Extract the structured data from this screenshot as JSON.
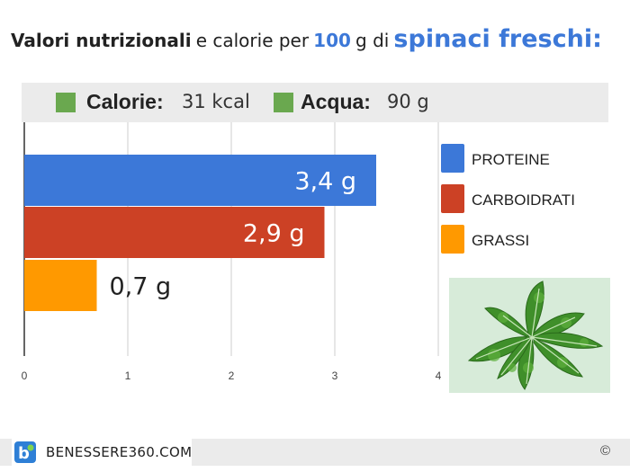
{
  "heading": {
    "part1": "Valori nutrizionali",
    "part2": "e calorie per",
    "part3": "100",
    "part4": "g di",
    "part5": "spinaci freschi:"
  },
  "infobar": {
    "calorie_label": "Calorie:",
    "calorie_value": "31 kcal",
    "acqua_label": "Acqua:",
    "acqua_value": "90 g",
    "square_color": "#6aa84f"
  },
  "legend": [
    {
      "label": "PROTEINE",
      "color": "#3c78d8"
    },
    {
      "label": "CARBOIDRATI",
      "color": "#cc4125"
    },
    {
      "label": "GRASSI",
      "color": "#ff9900"
    }
  ],
  "chart_data": {
    "type": "bar",
    "orientation": "horizontal",
    "categories": [
      "PROTEINE",
      "CARBOIDRATI",
      "GRASSI"
    ],
    "values": [
      3.4,
      2.9,
      0.7
    ],
    "value_labels": [
      "3,4 g",
      "2,9 g",
      "0,7 g"
    ],
    "colors": [
      "#3c78d8",
      "#cc4125",
      "#ff9900"
    ],
    "xlim": [
      0,
      4
    ],
    "xticks": [
      "0",
      "1",
      "2",
      "3",
      "4"
    ],
    "grid": true,
    "legend_position": "right"
  },
  "footer": {
    "brand": "BENESSERE360.COM",
    "copyright": "©",
    "logo_icon": "b-logo-icon"
  }
}
